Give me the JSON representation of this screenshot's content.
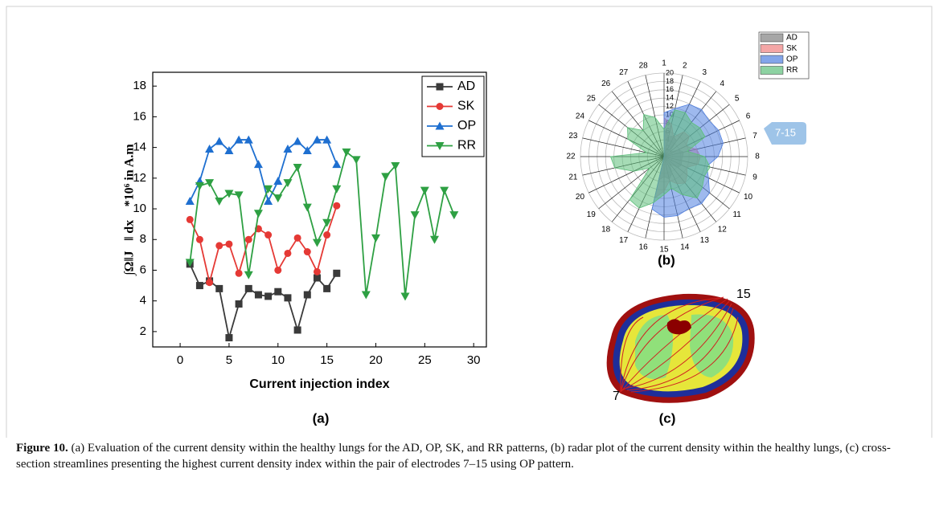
{
  "chart_data": [
    {
      "type": "line",
      "xlabel": "Current injection index",
      "ylabel": "∫Ω‖J⃗‖ dx⃗ *10⁶ in A.m",
      "x": [
        1,
        2,
        3,
        4,
        5,
        6,
        7,
        8,
        9,
        10,
        11,
        12,
        13,
        14,
        15,
        16,
        17,
        18,
        19,
        20,
        21,
        22,
        23,
        24,
        25,
        26,
        27,
        28
      ],
      "xlim": [
        -2.8,
        31.3
      ],
      "xticks": [
        0,
        5,
        10,
        15,
        20,
        25,
        30
      ],
      "ylim": [
        1,
        18.9
      ],
      "yticks": [
        2,
        4,
        6,
        8,
        10,
        12,
        14,
        16,
        18
      ],
      "legend": "top-right",
      "series": [
        {
          "name": "AD",
          "color": "#3a3a3a",
          "marker": "square",
          "values": [
            6.4,
            5.0,
            5.3,
            4.8,
            1.6,
            3.8,
            4.8,
            4.4,
            4.3,
            4.6,
            4.2,
            2.1,
            4.4,
            5.5,
            4.8,
            5.8,
            null,
            null,
            null,
            null,
            null,
            null,
            null,
            null,
            null,
            null,
            null,
            null
          ]
        },
        {
          "name": "SK",
          "color": "#e53935",
          "marker": "circle",
          "values": [
            9.3,
            8.0,
            5.2,
            7.6,
            7.7,
            5.8,
            8.0,
            8.7,
            8.3,
            6.0,
            7.1,
            8.1,
            7.2,
            5.9,
            8.3,
            10.2,
            null,
            null,
            null,
            null,
            null,
            null,
            null,
            null,
            null,
            null,
            null,
            null
          ]
        },
        {
          "name": "OP",
          "color": "#1e6fd0",
          "marker": "triangle-up",
          "values": [
            10.5,
            11.8,
            13.9,
            14.4,
            13.8,
            14.5,
            14.5,
            12.9,
            10.5,
            11.8,
            13.9,
            14.4,
            13.8,
            14.5,
            14.5,
            12.9,
            null,
            null,
            null,
            null,
            null,
            null,
            null,
            null,
            null,
            null,
            null,
            null
          ]
        },
        {
          "name": "RR",
          "color": "#2ea043",
          "marker": "triangle-down",
          "values": [
            6.5,
            11.5,
            11.7,
            10.5,
            11.0,
            10.9,
            5.7,
            9.7,
            11.3,
            10.7,
            11.7,
            12.7,
            10.1,
            7.8,
            9.1,
            11.3,
            13.7,
            13.2,
            4.4,
            8.1,
            12.1,
            12.8,
            4.3,
            9.6,
            11.2,
            8.0,
            11.2,
            9.6
          ]
        }
      ]
    },
    {
      "type": "radar",
      "categories": [
        "1",
        "2",
        "3",
        "4",
        "5",
        "6",
        "7",
        "8",
        "9",
        "10",
        "11",
        "12",
        "13",
        "14",
        "15",
        "16",
        "17",
        "18",
        "19",
        "20",
        "21",
        "22",
        "23",
        "24",
        "25",
        "26",
        "27",
        "28"
      ],
      "rlim": [
        0,
        20
      ],
      "rticks": [
        2,
        4,
        6,
        8,
        10,
        12,
        14,
        16,
        18,
        20
      ],
      "legend": "top-right",
      "series": [
        {
          "name": "AD",
          "color": "#808080",
          "values": [
            6.4,
            5.0,
            5.3,
            4.8,
            1.6,
            3.8,
            4.8,
            4.4,
            4.3,
            4.6,
            4.2,
            2.1,
            4.4,
            5.5,
            4.8,
            5.8,
            0,
            0,
            0,
            0,
            0,
            0,
            0,
            0,
            0,
            0,
            0,
            0
          ]
        },
        {
          "name": "SK",
          "color": "#f08080",
          "values": [
            9.3,
            8.0,
            5.2,
            7.6,
            7.7,
            5.8,
            8.0,
            8.7,
            8.3,
            6.0,
            7.1,
            8.1,
            7.2,
            5.9,
            8.3,
            10.2,
            0,
            0,
            0,
            0,
            0,
            0,
            0,
            0,
            0,
            0,
            0,
            0
          ]
        },
        {
          "name": "OP",
          "color": "#4f7fe0",
          "values": [
            10.5,
            11.8,
            13.9,
            14.4,
            13.8,
            14.5,
            14.5,
            12.9,
            10.5,
            11.8,
            13.9,
            14.4,
            13.8,
            14.5,
            14.5,
            12.9,
            0,
            0,
            0,
            0,
            0,
            0,
            0,
            0,
            0,
            0,
            0,
            0
          ]
        },
        {
          "name": "RR",
          "color": "#5cbf7a",
          "values": [
            6.5,
            11.5,
            11.7,
            10.5,
            11.0,
            10.9,
            5.7,
            9.7,
            11.3,
            10.7,
            11.7,
            12.7,
            10.1,
            7.8,
            9.1,
            11.3,
            13.7,
            13.2,
            4.4,
            8.1,
            12.1,
            12.8,
            4.3,
            9.6,
            11.2,
            8.0,
            11.2,
            9.6
          ]
        }
      ]
    }
  ],
  "panel_labels": [
    "(a)",
    "(b)",
    "(c)"
  ],
  "callout": "7-15",
  "image_labels": [
    "15",
    "7"
  ],
  "caption": {
    "label": "Figure 10.",
    "text": "(a) Evaluation of the current density within the healthy lungs for the AD, OP, SK, and RR patterns, (b) radar plot of the current density within the healthy lungs, (c) cross-section streamlines presenting the highest current density index within the pair of electrodes 7–15 using OP pattern."
  }
}
